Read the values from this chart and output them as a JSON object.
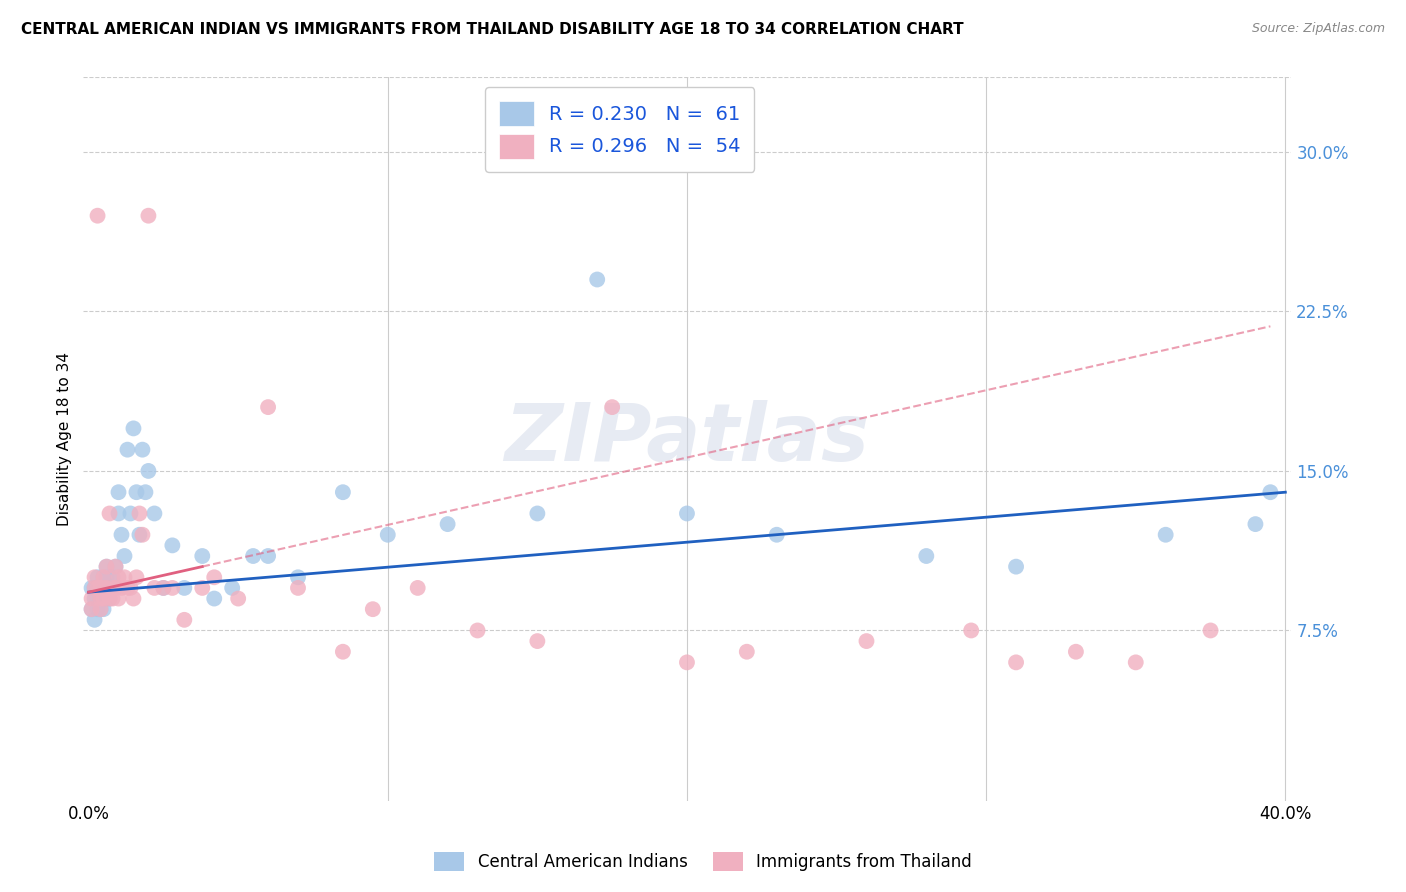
{
  "title": "CENTRAL AMERICAN INDIAN VS IMMIGRANTS FROM THAILAND DISABILITY AGE 18 TO 34 CORRELATION CHART",
  "source": "Source: ZipAtlas.com",
  "ylabel": "Disability Age 18 to 34",
  "xlabel": "",
  "xlim": [
    -0.002,
    0.402
  ],
  "ylim": [
    -0.005,
    0.335
  ],
  "xticks": [
    0.0,
    0.1,
    0.2,
    0.3,
    0.4
  ],
  "yticks": [
    0.075,
    0.15,
    0.225,
    0.3
  ],
  "xticklabels": [
    "0.0%",
    "",
    "",
    "",
    "40.0%"
  ],
  "yticklabels": [
    "7.5%",
    "15.0%",
    "22.5%",
    "30.0%"
  ],
  "blue_R": "0.230",
  "blue_N": "61",
  "pink_R": "0.296",
  "pink_N": "54",
  "legend_label_blue": "Central American Indians",
  "legend_label_pink": "Immigrants from Thailand",
  "watermark": "ZIPatlas",
  "blue_color": "#a8c8e8",
  "pink_color": "#f0b0c0",
  "line_blue": "#2060c0",
  "line_pink": "#e06080",
  "blue_scatter_x": [
    0.001,
    0.001,
    0.002,
    0.002,
    0.002,
    0.003,
    0.003,
    0.003,
    0.003,
    0.004,
    0.004,
    0.004,
    0.005,
    0.005,
    0.005,
    0.005,
    0.006,
    0.006,
    0.006,
    0.006,
    0.007,
    0.007,
    0.007,
    0.008,
    0.008,
    0.009,
    0.009,
    0.01,
    0.01,
    0.011,
    0.012,
    0.013,
    0.014,
    0.015,
    0.016,
    0.017,
    0.018,
    0.019,
    0.02,
    0.022,
    0.025,
    0.028,
    0.032,
    0.038,
    0.042,
    0.048,
    0.055,
    0.06,
    0.07,
    0.085,
    0.1,
    0.12,
    0.15,
    0.17,
    0.2,
    0.23,
    0.28,
    0.31,
    0.36,
    0.39,
    0.395
  ],
  "blue_scatter_y": [
    0.095,
    0.085,
    0.09,
    0.095,
    0.08,
    0.095,
    0.09,
    0.085,
    0.1,
    0.09,
    0.095,
    0.085,
    0.095,
    0.09,
    0.1,
    0.085,
    0.095,
    0.09,
    0.1,
    0.105,
    0.095,
    0.1,
    0.09,
    0.095,
    0.1,
    0.095,
    0.105,
    0.14,
    0.13,
    0.12,
    0.11,
    0.16,
    0.13,
    0.17,
    0.14,
    0.12,
    0.16,
    0.14,
    0.15,
    0.13,
    0.095,
    0.115,
    0.095,
    0.11,
    0.09,
    0.095,
    0.11,
    0.11,
    0.1,
    0.14,
    0.12,
    0.125,
    0.13,
    0.24,
    0.13,
    0.12,
    0.11,
    0.105,
    0.12,
    0.125,
    0.14
  ],
  "pink_scatter_x": [
    0.001,
    0.001,
    0.002,
    0.002,
    0.003,
    0.003,
    0.004,
    0.004,
    0.004,
    0.005,
    0.005,
    0.005,
    0.006,
    0.006,
    0.007,
    0.007,
    0.008,
    0.008,
    0.009,
    0.009,
    0.01,
    0.01,
    0.011,
    0.012,
    0.013,
    0.014,
    0.015,
    0.016,
    0.017,
    0.018,
    0.02,
    0.022,
    0.025,
    0.028,
    0.032,
    0.038,
    0.042,
    0.05,
    0.06,
    0.07,
    0.085,
    0.095,
    0.11,
    0.13,
    0.15,
    0.175,
    0.2,
    0.22,
    0.26,
    0.295,
    0.31,
    0.33,
    0.35,
    0.375
  ],
  "pink_scatter_y": [
    0.09,
    0.085,
    0.095,
    0.1,
    0.095,
    0.27,
    0.09,
    0.095,
    0.085,
    0.095,
    0.09,
    0.1,
    0.095,
    0.105,
    0.09,
    0.13,
    0.09,
    0.095,
    0.095,
    0.105,
    0.09,
    0.1,
    0.095,
    0.1,
    0.095,
    0.095,
    0.09,
    0.1,
    0.13,
    0.12,
    0.27,
    0.095,
    0.095,
    0.095,
    0.08,
    0.095,
    0.1,
    0.09,
    0.18,
    0.095,
    0.065,
    0.085,
    0.095,
    0.075,
    0.07,
    0.18,
    0.06,
    0.065,
    0.07,
    0.075,
    0.06,
    0.065,
    0.06,
    0.075
  ],
  "blue_line_x0": 0.0,
  "blue_line_x1": 0.4,
  "blue_line_y0": 0.093,
  "blue_line_y1": 0.14,
  "pink_line_solid_x0": 0.0,
  "pink_line_solid_x1": 0.038,
  "pink_line_y0": 0.093,
  "pink_line_y1": 0.113,
  "pink_line_full_x1": 0.395,
  "pink_line_full_y1": 0.218,
  "background_color": "#ffffff",
  "grid_color": "#cccccc",
  "title_fontsize": 11,
  "axis_label_fontsize": 11,
  "tick_fontsize": 12,
  "legend_fontsize": 14,
  "right_tick_color": "#4a90d9",
  "legend_text_color": "#1a56db"
}
